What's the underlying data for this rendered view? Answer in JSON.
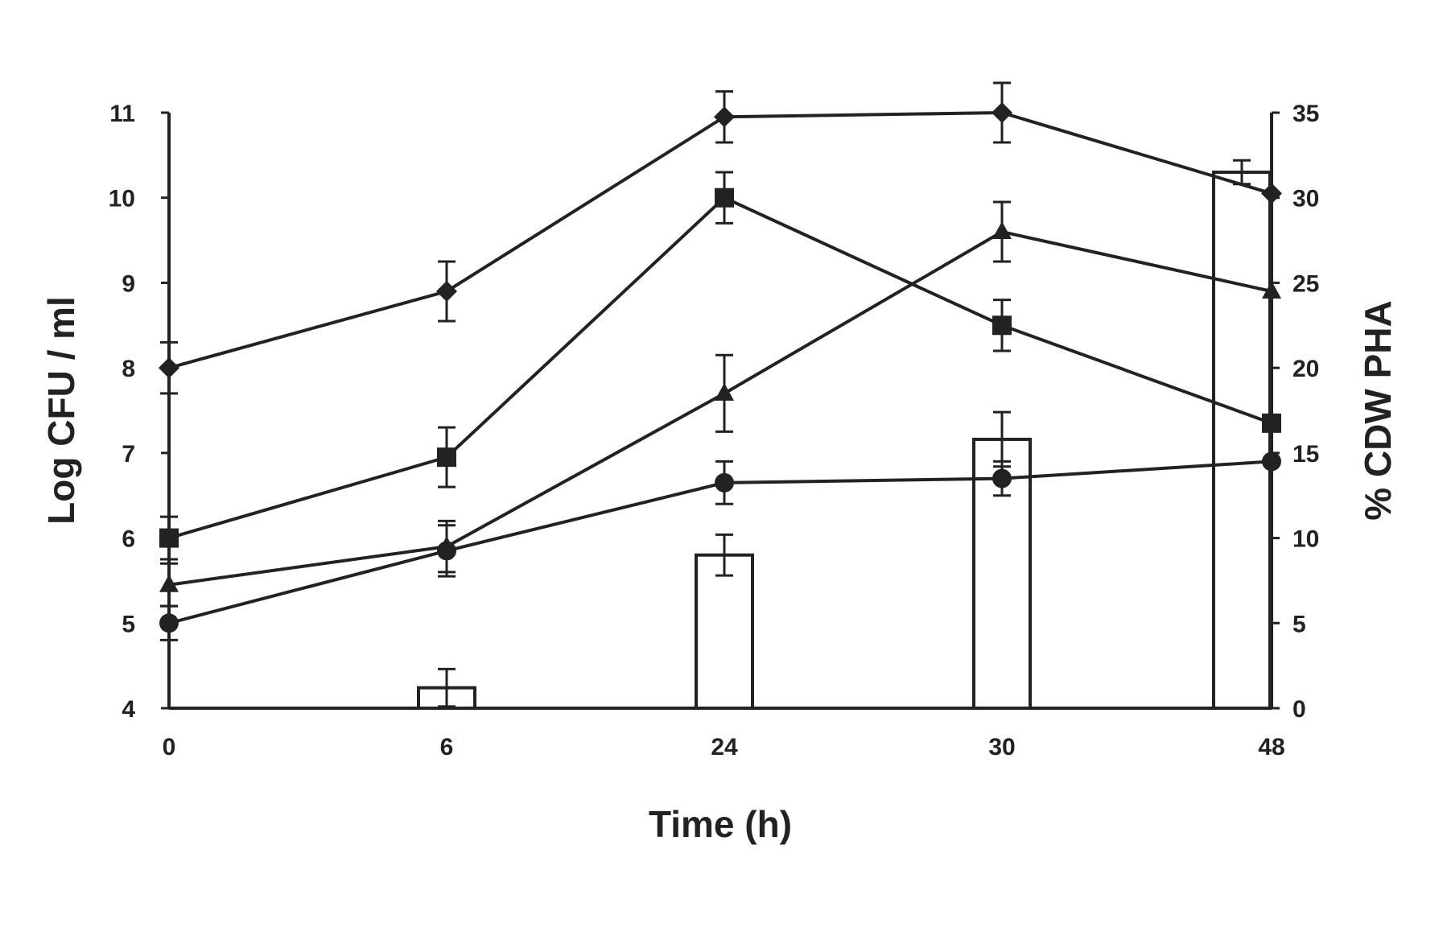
{
  "chart_data": {
    "type": "bar+line",
    "title": "",
    "xlabel": "Time (h)",
    "ylabel_left": "Log CFU / ml",
    "ylabel_right": "% CDW  PHA",
    "categories": [
      "0",
      "6",
      "24",
      "30",
      "48"
    ],
    "ylim_left": [
      4,
      11
    ],
    "yticks_left": [
      "4",
      "5",
      "6",
      "7",
      "8",
      "9",
      "10",
      "11"
    ],
    "ylim_right": [
      0,
      35
    ],
    "yticks_right": [
      "0",
      "5",
      "10",
      "15",
      "20",
      "25",
      "30",
      "35"
    ],
    "grid": false,
    "legend": "none",
    "bars": {
      "axis": "right",
      "values": [
        0,
        1.2,
        9,
        15.8,
        31.5
      ],
      "errors": [
        0,
        1.1,
        1.2,
        1.6,
        0.7
      ]
    },
    "series": [
      {
        "marker": "diamond",
        "axis": "left",
        "values": [
          8.0,
          8.9,
          10.95,
          11.0,
          10.05
        ],
        "errors": [
          0.3,
          0.35,
          0.3,
          0.35,
          0.0
        ]
      },
      {
        "marker": "square",
        "axis": "left",
        "values": [
          6.0,
          6.95,
          10.0,
          8.5,
          7.35
        ],
        "errors": [
          0.25,
          0.35,
          0.3,
          0.3,
          0.0
        ]
      },
      {
        "marker": "triangle",
        "axis": "left",
        "values": [
          5.45,
          5.9,
          7.7,
          9.6,
          8.9
        ],
        "errors": [
          0.25,
          0.3,
          0.45,
          0.35,
          0.0
        ]
      },
      {
        "marker": "circle",
        "axis": "left",
        "values": [
          5.0,
          5.85,
          6.65,
          6.7,
          6.9
        ],
        "errors": [
          0.2,
          0.3,
          0.25,
          0.2,
          0.0
        ]
      }
    ]
  }
}
